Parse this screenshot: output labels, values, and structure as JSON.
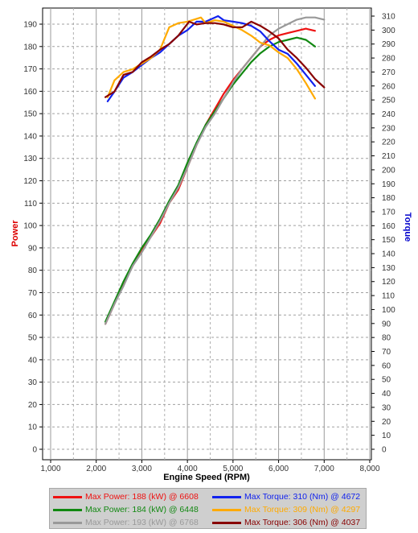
{
  "chart_data": {
    "type": "line",
    "xlabel": "Engine Speed (RPM)",
    "ylabel_left": "Power",
    "ylabel_right": "Torque",
    "xlim": [
      1000,
      8000
    ],
    "ylim_left": [
      0,
      190
    ],
    "ylim_right": [
      0,
      310
    ],
    "x_ticks": [
      "1,000",
      "2,000",
      "3,000",
      "4,000",
      "5,000",
      "6,000",
      "7,000",
      "8,000"
    ],
    "y_ticks_left": [
      "0",
      "10",
      "20",
      "30",
      "40",
      "50",
      "60",
      "70",
      "80",
      "90",
      "100",
      "110",
      "120",
      "130",
      "140",
      "150",
      "160",
      "170",
      "180",
      "190"
    ],
    "y_ticks_right": [
      "0",
      "10",
      "20",
      "30",
      "40",
      "50",
      "60",
      "70",
      "80",
      "90",
      "100",
      "110",
      "120",
      "130",
      "140",
      "150",
      "160",
      "170",
      "180",
      "190",
      "200",
      "210",
      "220",
      "230",
      "240",
      "250",
      "260",
      "270",
      "280",
      "290",
      "300",
      "310"
    ],
    "grid": true,
    "colors": {
      "left_axis_title": "#dd0000",
      "right_axis_title": "#0000cc"
    },
    "series": [
      {
        "name": "Max Power: 188 (kW) @ 6608",
        "axis": "left",
        "color": "#ee1111",
        "x": [
          2200,
          2400,
          2600,
          2800,
          3000,
          3200,
          3400,
          3600,
          3800,
          4000,
          4200,
          4400,
          4600,
          4800,
          5000,
          5200,
          5400,
          5600,
          5800,
          6000,
          6200,
          6400,
          6600,
          6800
        ],
        "y": [
          56,
          65,
          74,
          82,
          89,
          95,
          101,
          110,
          116,
          126,
          136,
          145,
          152,
          159,
          165,
          170,
          175,
          180,
          183,
          185,
          186,
          187,
          188,
          187
        ]
      },
      {
        "name": "Max Power: 184 (kW) @ 6448",
        "axis": "left",
        "color": "#118811",
        "x": [
          2200,
          2400,
          2600,
          2800,
          3000,
          3200,
          3400,
          3600,
          3800,
          4000,
          4200,
          4400,
          4600,
          4800,
          5000,
          5200,
          5400,
          5600,
          5800,
          6000,
          6200,
          6400,
          6600,
          6800
        ],
        "y": [
          57,
          66,
          75,
          83,
          90,
          96,
          103,
          111,
          118,
          128,
          137,
          145,
          151,
          157,
          163,
          168,
          173,
          177,
          180,
          182,
          183,
          184,
          183,
          180
        ]
      },
      {
        "name": "Max Power: 193 (kW) @ 6768",
        "axis": "left",
        "color": "#999999",
        "x": [
          2200,
          2400,
          2600,
          2800,
          3000,
          3200,
          3400,
          3600,
          3800,
          4000,
          4200,
          4400,
          4600,
          4800,
          5000,
          5200,
          5400,
          5600,
          5800,
          6000,
          6200,
          6400,
          6600,
          6800,
          7000
        ],
        "y": [
          56,
          65,
          73,
          82,
          88,
          95,
          102,
          110,
          117,
          126,
          136,
          144,
          150,
          157,
          164,
          170,
          175,
          180,
          185,
          188,
          190,
          192,
          193,
          193,
          192
        ]
      },
      {
        "name": "Max Torque: 310 (Nm) @ 4672",
        "axis": "right",
        "color": "#1122ee",
        "x": [
          2250,
          2400,
          2600,
          2800,
          3000,
          3200,
          3400,
          3600,
          3800,
          4000,
          4200,
          4400,
          4672,
          4800,
          5000,
          5200,
          5400,
          5600,
          5800,
          6000,
          6200,
          6400,
          6600,
          6800
        ],
        "y": [
          249,
          256,
          266,
          270,
          275,
          280,
          284,
          290,
          296,
          300,
          306,
          306,
          310,
          307,
          306,
          305,
          303,
          299,
          292,
          286,
          283,
          276,
          268,
          260
        ]
      },
      {
        "name": "Max Torque: 309 (Nm) @ 4297",
        "axis": "right",
        "color": "#ffaa00",
        "x": [
          2250,
          2400,
          2600,
          2800,
          3000,
          3200,
          3400,
          3600,
          3800,
          4000,
          4297,
          4400,
          4600,
          4800,
          5000,
          5200,
          5400,
          5600,
          5800,
          6000,
          6200,
          6400,
          6600,
          6800
        ],
        "y": [
          252,
          264,
          270,
          272,
          276,
          280,
          286,
          302,
          305,
          306,
          309,
          305,
          307,
          306,
          303,
          300,
          296,
          291,
          289,
          284,
          280,
          272,
          262,
          251
        ]
      },
      {
        "name": "Max Torque: 306 (Nm) @ 4037",
        "axis": "right",
        "color": "#880000",
        "x": [
          2200,
          2400,
          2600,
          2800,
          3000,
          3200,
          3400,
          3600,
          3800,
          4037,
          4200,
          4400,
          4600,
          4800,
          5000,
          5200,
          5400,
          5600,
          5800,
          6000,
          6200,
          6400,
          6600,
          6800,
          7000
        ],
        "y": [
          252,
          256,
          268,
          270,
          277,
          281,
          286,
          290,
          296,
          306,
          304,
          305,
          305,
          304,
          302,
          302,
          306,
          303,
          299,
          294,
          286,
          280,
          273,
          265,
          259
        ]
      }
    ]
  }
}
